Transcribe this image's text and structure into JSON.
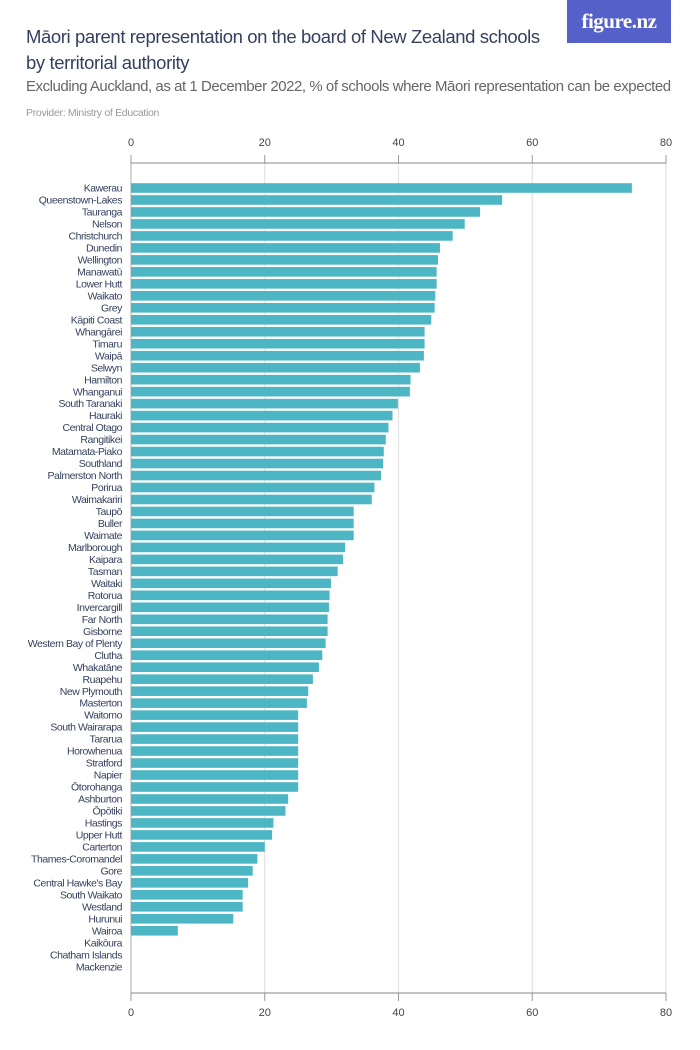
{
  "header": {
    "title": "Māori parent representation on the board of New Zealand schools by territorial authority",
    "subtitle": "Excluding Auckland, as at 1 December 2022, % of schools where Māori representation can be expected",
    "provider": "Provider: Ministry of Education",
    "logo": "figure.nz"
  },
  "colors": {
    "bar": "#4db6c4",
    "title": "#34405e",
    "logo_bg": "#5560c8"
  },
  "chart_data": {
    "type": "bar",
    "orientation": "horizontal",
    "xlim": [
      0,
      80
    ],
    "xticks": [
      "0",
      "20",
      "40",
      "60",
      "80"
    ],
    "grid": true,
    "categories": [
      "Kawerau",
      "Queenstown-Lakes",
      "Tauranga",
      "Nelson",
      "Christchurch",
      "Dunedin",
      "Wellington",
      "Manawatū",
      "Lower Hutt",
      "Waikato",
      "Grey",
      "Kāpiti Coast",
      "Whangārei",
      "Timaru",
      "Waipā",
      "Selwyn",
      "Hamilton",
      "Whanganui",
      "South Taranaki",
      "Hauraki",
      "Central Otago",
      "Rangitikei",
      "Matamata-Piako",
      "Southland",
      "Palmerston North",
      "Porirua",
      "Waimakariri",
      "Taupō",
      "Buller",
      "Waimate",
      "Marlborough",
      "Kaipara",
      "Tasman",
      "Waitaki",
      "Rotorua",
      "Invercargill",
      "Far North",
      "Gisborne",
      "Western Bay of Plenty",
      "Clutha",
      "Whakatāne",
      "Ruapehu",
      "New Plymouth",
      "Masterton",
      "Waitomo",
      "South Wairarapa",
      "Tararua",
      "Horowhenua",
      "Stratford",
      "Napier",
      "Ōtorohanga",
      "Ashburton",
      "Ōpōtiki",
      "Hastings",
      "Upper Hutt",
      "Carterton",
      "Thames-Coromandel",
      "Gore",
      "Central Hawke's Bay",
      "South Waikato",
      "Westland",
      "Hurunui",
      "Wairoa",
      "Kaikōura",
      "Chatham Islands",
      "Mackenzie"
    ],
    "values": [
      74.9,
      55.5,
      52.2,
      49.9,
      48.1,
      46.2,
      45.9,
      45.7,
      45.7,
      45.5,
      45.4,
      44.9,
      43.9,
      43.9,
      43.8,
      43.2,
      41.8,
      41.7,
      39.9,
      39.1,
      38.5,
      38.1,
      37.8,
      37.7,
      37.4,
      36.4,
      36.0,
      33.3,
      33.3,
      33.3,
      32.0,
      31.7,
      30.9,
      29.9,
      29.7,
      29.6,
      29.4,
      29.4,
      29.1,
      28.6,
      28.1,
      27.2,
      26.5,
      26.3,
      25.0,
      25.0,
      25.0,
      25.0,
      25.0,
      25.0,
      25.0,
      23.5,
      23.1,
      21.3,
      21.1,
      20.0,
      18.9,
      18.2,
      17.5,
      16.7,
      16.7,
      15.3,
      7.0,
      0,
      0,
      0
    ]
  }
}
